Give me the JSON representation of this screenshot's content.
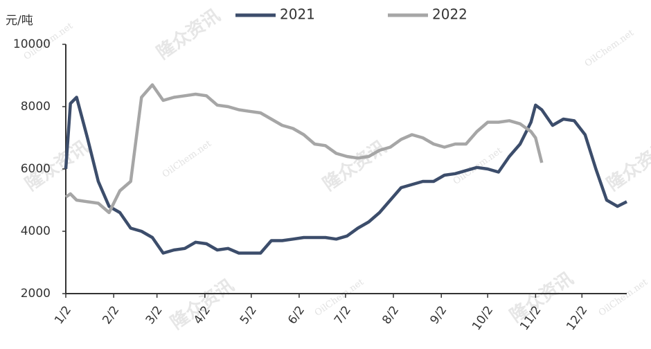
{
  "chart_data": {
    "type": "line",
    "y_label": "元/吨",
    "watermark": [
      "隆众资讯",
      "OilChem.net"
    ],
    "x": [
      "1/2",
      "1/5",
      "1/9",
      "1/16",
      "1/23",
      "1/30",
      "2/6",
      "2/13",
      "2/20",
      "2/27",
      "3/6",
      "3/13",
      "3/20",
      "3/27",
      "4/3",
      "4/10",
      "4/17",
      "4/24",
      "5/1",
      "5/8",
      "5/15",
      "5/22",
      "5/29",
      "6/5",
      "6/12",
      "6/19",
      "6/26",
      "7/3",
      "7/10",
      "7/17",
      "7/24",
      "7/31",
      "8/7",
      "8/14",
      "8/21",
      "8/28",
      "9/4",
      "9/11",
      "9/18",
      "9/25",
      "10/2",
      "10/9",
      "10/16",
      "10/23",
      "10/30",
      "11/2",
      "11/6",
      "11/13",
      "11/20",
      "11/27",
      "12/4",
      "12/11",
      "12/18",
      "12/25",
      "12/31"
    ],
    "series": [
      {
        "name": "2021",
        "color": "#3c4d6b",
        "values": [
          6000,
          8100,
          8300,
          7000,
          5600,
          4800,
          4600,
          4100,
          4000,
          3800,
          3300,
          3400,
          3450,
          3650,
          3600,
          3400,
          3450,
          3300,
          3300,
          3300,
          3700,
          3700,
          3750,
          3800,
          3800,
          3800,
          3750,
          3850,
          4100,
          4300,
          4600,
          5000,
          5400,
          5500,
          5600,
          5600,
          5800,
          5850,
          5950,
          6050,
          6000,
          5900,
          6400,
          6800,
          7500,
          8050,
          7900,
          7400,
          7600,
          7550,
          7100,
          6000,
          5000,
          4800,
          4950
        ]
      },
      {
        "name": "2022",
        "color": "#a6a6a6",
        "values": [
          5100,
          5200,
          5000,
          4950,
          4900,
          4600,
          5300,
          5600,
          8300,
          8700,
          8200,
          8300,
          8350,
          8400,
          8350,
          8050,
          8000,
          7900,
          7850,
          7800,
          7600,
          7400,
          7300,
          7100,
          6800,
          6750,
          6500,
          6400,
          6350,
          6400,
          6600,
          6700,
          6950,
          7100,
          7000,
          6800,
          6700,
          6800,
          6800,
          7200,
          7500,
          7500,
          7550,
          7450,
          7200,
          7000,
          6200,
          null,
          null,
          null,
          null,
          null,
          null,
          null,
          null
        ]
      }
    ],
    "xlim": [
      "1/2",
      "12/31"
    ],
    "xticks": [
      "1/2",
      "2/2",
      "3/2",
      "4/2",
      "5/2",
      "6/2",
      "7/2",
      "8/2",
      "9/2",
      "10/2",
      "11/2",
      "12/2"
    ],
    "ylim": [
      2000,
      10000
    ],
    "yticks": [
      2000,
      4000,
      6000,
      8000,
      10000
    ],
    "grid": false,
    "legend": "top"
  }
}
